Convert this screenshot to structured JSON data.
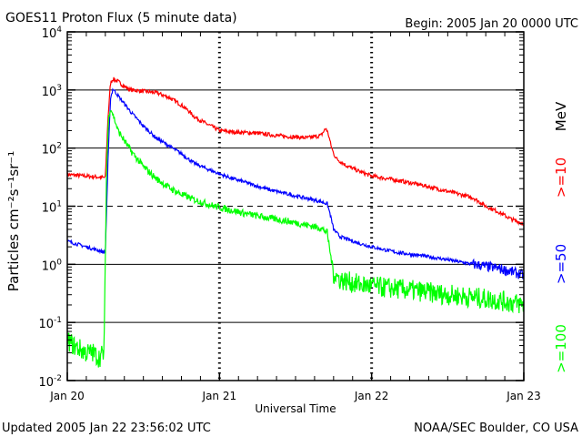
{
  "header": {
    "title": "GOES11 Proton Flux (5 minute data)",
    "begin": "Begin: 2005 Jan 20 0000 UTC"
  },
  "footer": {
    "updated": "Updated 2005 Jan 22 23:56:02 UTC",
    "source": "NOAA/SEC Boulder, CO USA"
  },
  "chart_data": {
    "type": "line",
    "title": "GOES11 Proton Flux (5 minute data)",
    "xlabel": "Universal Time",
    "ylabel": "Particles cm⁻²s⁻¹sr⁻¹",
    "yscale": "log",
    "ylim": [
      0.01,
      10000
    ],
    "xlim": [
      0,
      72
    ],
    "x_unit": "hours since 2005 Jan 20 0000 UTC",
    "x_ticks": [
      {
        "x": 0,
        "label": "Jan 20"
      },
      {
        "x": 24,
        "label": "Jan 21"
      },
      {
        "x": 48,
        "label": "Jan 22"
      },
      {
        "x": 72,
        "label": "Jan 23"
      }
    ],
    "y_ticks": [
      {
        "base": "10",
        "exp": "-2",
        "value": 0.01
      },
      {
        "base": "10",
        "exp": "-1",
        "value": 0.1
      },
      {
        "base": "10",
        "exp": "0",
        "value": 1
      },
      {
        "base": "10",
        "exp": "1",
        "value": 10
      },
      {
        "base": "10",
        "exp": "2",
        "value": 100
      },
      {
        "base": "10",
        "exp": "3",
        "value": 1000
      },
      {
        "base": "10",
        "exp": "4",
        "value": 10000
      }
    ],
    "reference_lines": [
      {
        "value": 0.1,
        "style": "solid"
      },
      {
        "value": 1,
        "style": "solid"
      },
      {
        "value": 10,
        "style": "dashed"
      },
      {
        "value": 100,
        "style": "solid"
      },
      {
        "value": 1000,
        "style": "solid"
      }
    ],
    "grid": "vertical dashed at day boundaries",
    "unit_label": "MeV",
    "series": [
      {
        "name": ">=10",
        "color": "#ff0000",
        "noise": 0.035,
        "x": [
          0,
          3,
          6,
          6.4,
          6.8,
          7.2,
          8,
          9,
          10,
          12,
          14,
          16,
          18,
          19,
          20,
          21,
          22,
          23,
          24,
          26,
          28,
          30,
          32,
          34,
          36,
          38,
          40,
          40.8,
          41.2,
          41.6,
          42,
          42.5,
          44,
          46,
          48,
          52,
          56,
          60,
          64,
          66,
          68,
          70,
          72
        ],
        "values": [
          35,
          33,
          31,
          300,
          1300,
          1550,
          1400,
          1150,
          1000,
          950,
          900,
          750,
          550,
          450,
          350,
          300,
          260,
          230,
          200,
          190,
          185,
          180,
          170,
          160,
          155,
          150,
          165,
          220,
          170,
          110,
          80,
          65,
          50,
          40,
          33,
          28,
          23,
          18,
          14,
          10,
          8,
          6,
          5
        ]
      },
      {
        "name": ">=50",
        "color": "#0000ff",
        "noise": 0.03,
        "x": [
          0,
          3,
          6,
          6.4,
          6.8,
          7.2,
          8,
          10,
          12,
          14,
          16,
          18,
          20,
          22,
          24,
          26,
          28,
          30,
          32,
          34,
          36,
          38,
          40,
          41,
          41.5,
          42,
          43,
          46,
          48,
          52,
          56,
          60,
          64,
          68,
          70,
          72
        ],
        "values": [
          2.5,
          2.0,
          1.6,
          50,
          700,
          1050,
          800,
          420,
          240,
          150,
          110,
          80,
          55,
          44,
          36,
          30,
          26,
          22,
          19,
          17,
          15,
          13.5,
          12,
          11,
          7,
          4,
          3,
          2.3,
          2.0,
          1.6,
          1.4,
          1.2,
          1.0,
          0.85,
          0.75,
          0.65
        ]
      },
      {
        "name": ">=100",
        "color": "#00ff00",
        "noise": 0.06,
        "x": [
          0,
          1,
          2,
          3,
          4,
          5,
          5.8,
          6.2,
          6.5,
          6.8,
          7.2,
          8,
          10,
          12,
          14,
          16,
          18,
          20,
          22,
          24,
          26,
          28,
          30,
          32,
          34,
          36,
          38,
          40,
          41,
          41.5,
          42,
          43,
          46,
          48,
          52,
          56,
          60,
          64,
          68,
          70,
          72
        ],
        "values": [
          0.05,
          0.04,
          0.035,
          0.03,
          0.03,
          0.025,
          0.03,
          50,
          300,
          500,
          380,
          200,
          90,
          48,
          30,
          21,
          16,
          13,
          11,
          9.5,
          8.5,
          7.5,
          6.8,
          6.2,
          5.7,
          5.2,
          4.7,
          4.2,
          3.5,
          1.5,
          0.7,
          0.55,
          0.45,
          0.42,
          0.38,
          0.34,
          0.3,
          0.27,
          0.24,
          0.22,
          0.2
        ]
      }
    ]
  }
}
